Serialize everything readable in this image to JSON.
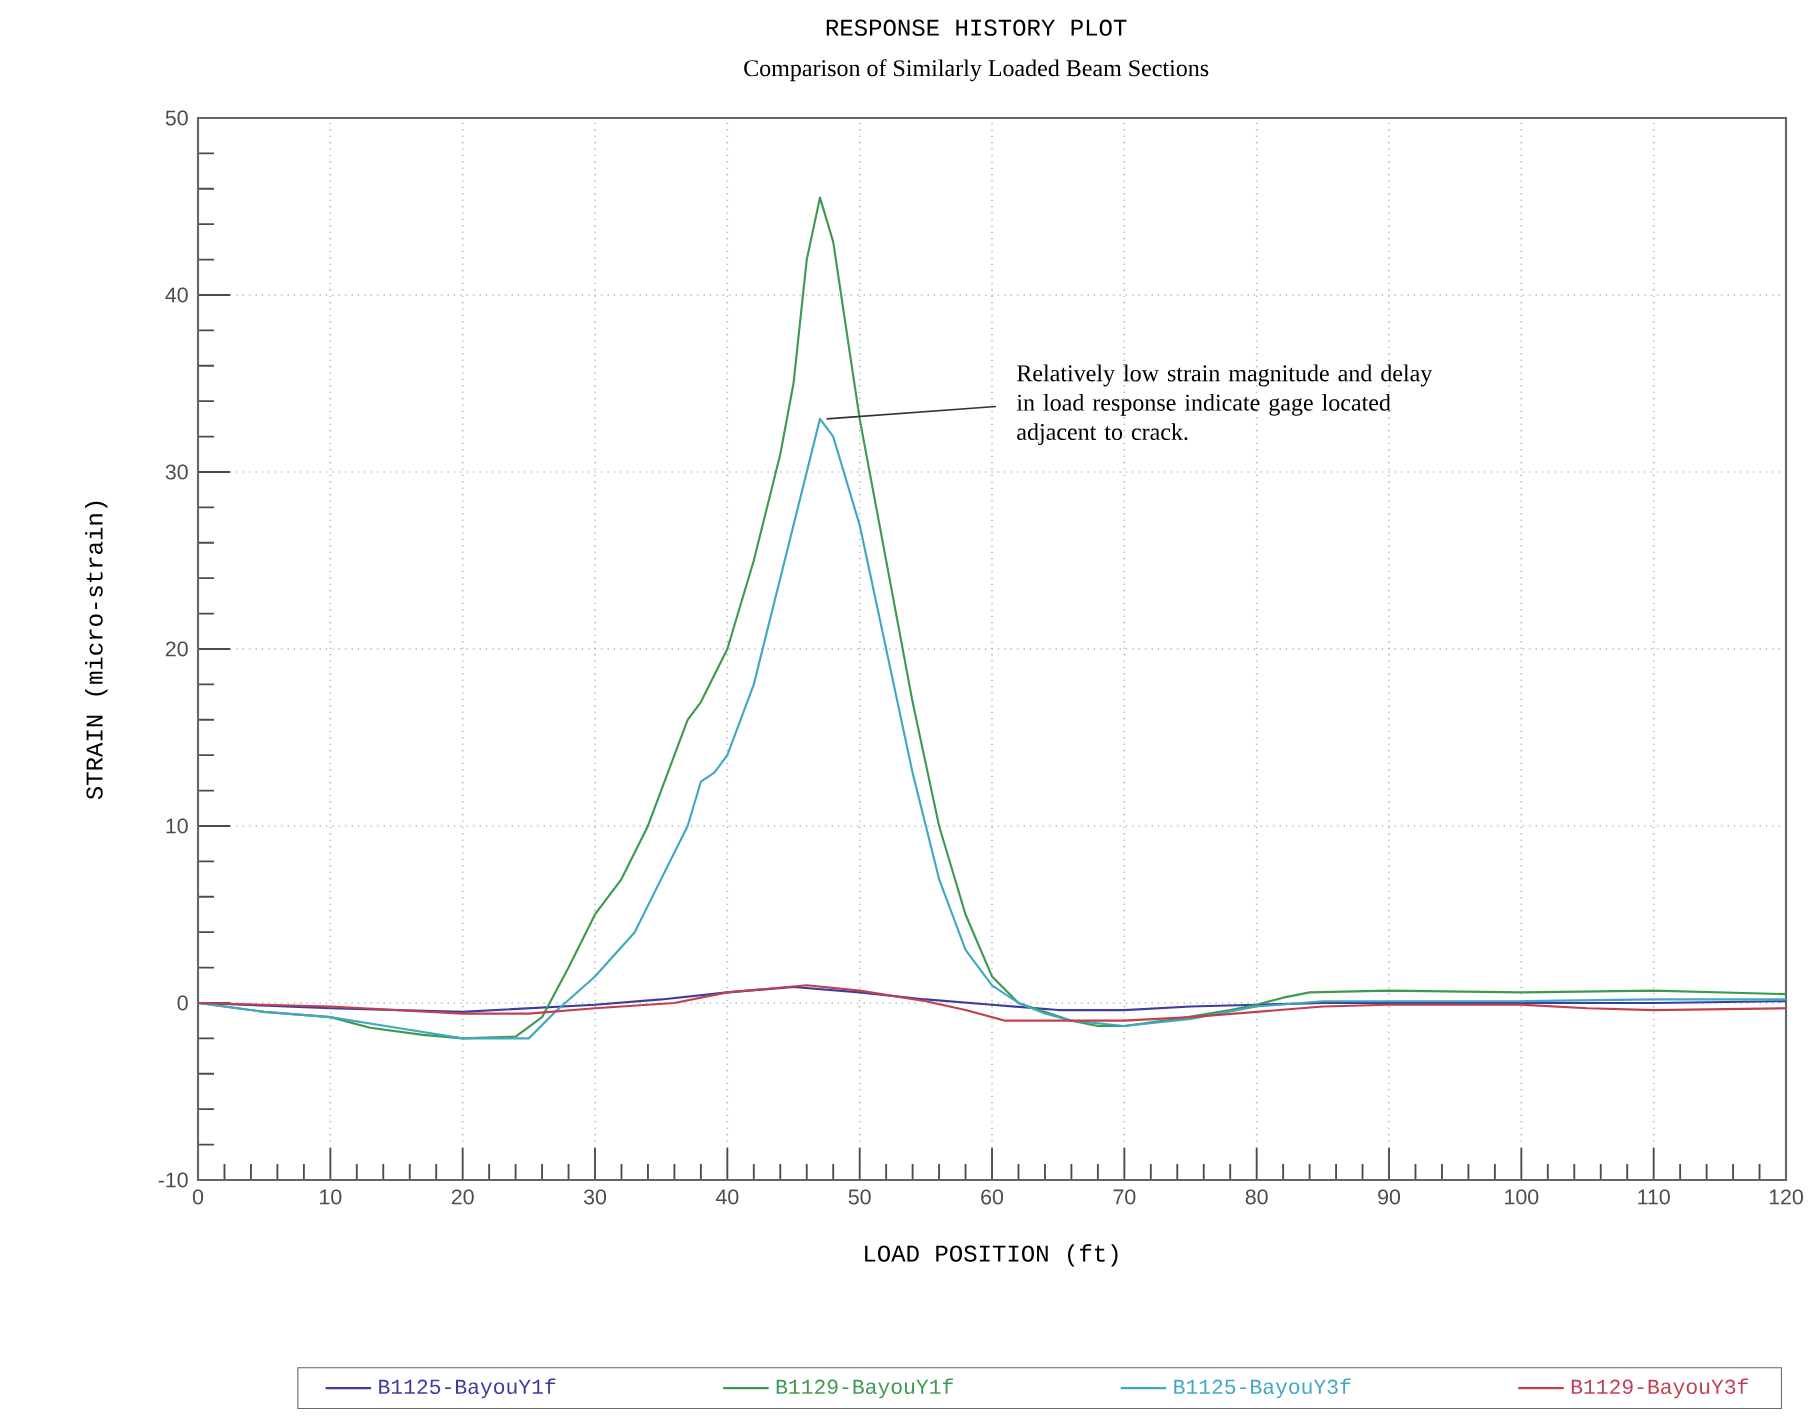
{
  "chart_data": {
    "type": "line",
    "title": "RESPONSE HISTORY PLOT",
    "subtitle": "Comparison of Similarly Loaded Beam Sections",
    "xlabel": "LOAD POSITION (ft)",
    "ylabel": "STRAIN (micro-strain)",
    "xlim": [
      0,
      120
    ],
    "ylim": [
      -10,
      50
    ],
    "xticks": [
      0,
      10,
      20,
      30,
      40,
      50,
      60,
      70,
      80,
      90,
      100,
      110,
      120
    ],
    "yticks": [
      -10,
      0,
      10,
      20,
      30,
      40,
      50
    ],
    "grid": true,
    "legend": "bottom",
    "annotations": [
      {
        "text": "Relatively low strain magnitude and delay in load response indicate gage located adjacent to crack.",
        "x": 47.5,
        "y": 33
      }
    ],
    "series": [
      {
        "name": "B1125-BayouY1f",
        "color": "#3c3ca0",
        "x": [
          0,
          10,
          20,
          30,
          35,
          40,
          45,
          50,
          55,
          60,
          65,
          70,
          75,
          80,
          85,
          90,
          100,
          110,
          120
        ],
        "values": [
          0,
          -0.3,
          -0.5,
          -0.1,
          0.2,
          0.6,
          0.9,
          0.6,
          0.2,
          -0.1,
          -0.4,
          -0.4,
          -0.2,
          -0.1,
          0,
          0,
          0,
          0,
          0.1
        ]
      },
      {
        "name": "B1129-BayouY1f",
        "color": "#3c9a50",
        "x": [
          0,
          5,
          10,
          13,
          17,
          20,
          24,
          26,
          28,
          30,
          32,
          34,
          36,
          37,
          38,
          40,
          42,
          44,
          45,
          46,
          47,
          48,
          49,
          50,
          52,
          54,
          56,
          58,
          60,
          62,
          64,
          66,
          68,
          70,
          74,
          78,
          80,
          82,
          84,
          90,
          100,
          110,
          120
        ],
        "values": [
          0,
          -0.5,
          -0.8,
          -1.4,
          -1.8,
          -2.0,
          -1.9,
          -0.8,
          2,
          5,
          7,
          10,
          14,
          16,
          17,
          20,
          25,
          31,
          35,
          42,
          45.5,
          43,
          38,
          33,
          25,
          17,
          10,
          5,
          1.5,
          0,
          -0.5,
          -1,
          -1.3,
          -1.3,
          -0.9,
          -0.4,
          -0.1,
          0.3,
          0.6,
          0.7,
          0.6,
          0.7,
          0.5
        ]
      },
      {
        "name": "B1125-BayouY3f",
        "color": "#40a8c0",
        "x": [
          0,
          5,
          10,
          15,
          20,
          25,
          27,
          30,
          33,
          35,
          37,
          38,
          39,
          40,
          42,
          44,
          46,
          47,
          48,
          50,
          52,
          54,
          56,
          58,
          60,
          62,
          64,
          66,
          70,
          75,
          80,
          85,
          90,
          100,
          110,
          120
        ],
        "values": [
          0,
          -0.5,
          -0.8,
          -1.4,
          -2.0,
          -2.0,
          -0.5,
          1.5,
          4,
          7,
          10,
          12.5,
          13,
          14,
          18,
          24,
          30,
          33,
          32,
          27,
          20,
          13,
          7,
          3,
          1,
          0,
          -0.6,
          -1.0,
          -1.3,
          -0.9,
          -0.2,
          0.1,
          0.1,
          0.1,
          0.2,
          0.2
        ]
      },
      {
        "name": "B1129-BayouY3f",
        "color": "#c04050",
        "x": [
          0,
          10,
          20,
          25,
          30,
          36,
          40,
          46,
          50,
          55,
          58,
          61,
          65,
          70,
          75,
          80,
          85,
          90,
          100,
          105,
          110,
          120
        ],
        "values": [
          0,
          -0.2,
          -0.6,
          -0.6,
          -0.3,
          0,
          0.6,
          1.0,
          0.7,
          0.1,
          -0.4,
          -1.0,
          -1.0,
          -1.0,
          -0.8,
          -0.5,
          -0.2,
          -0.1,
          -0.1,
          -0.3,
          -0.4,
          -0.3
        ]
      }
    ]
  }
}
